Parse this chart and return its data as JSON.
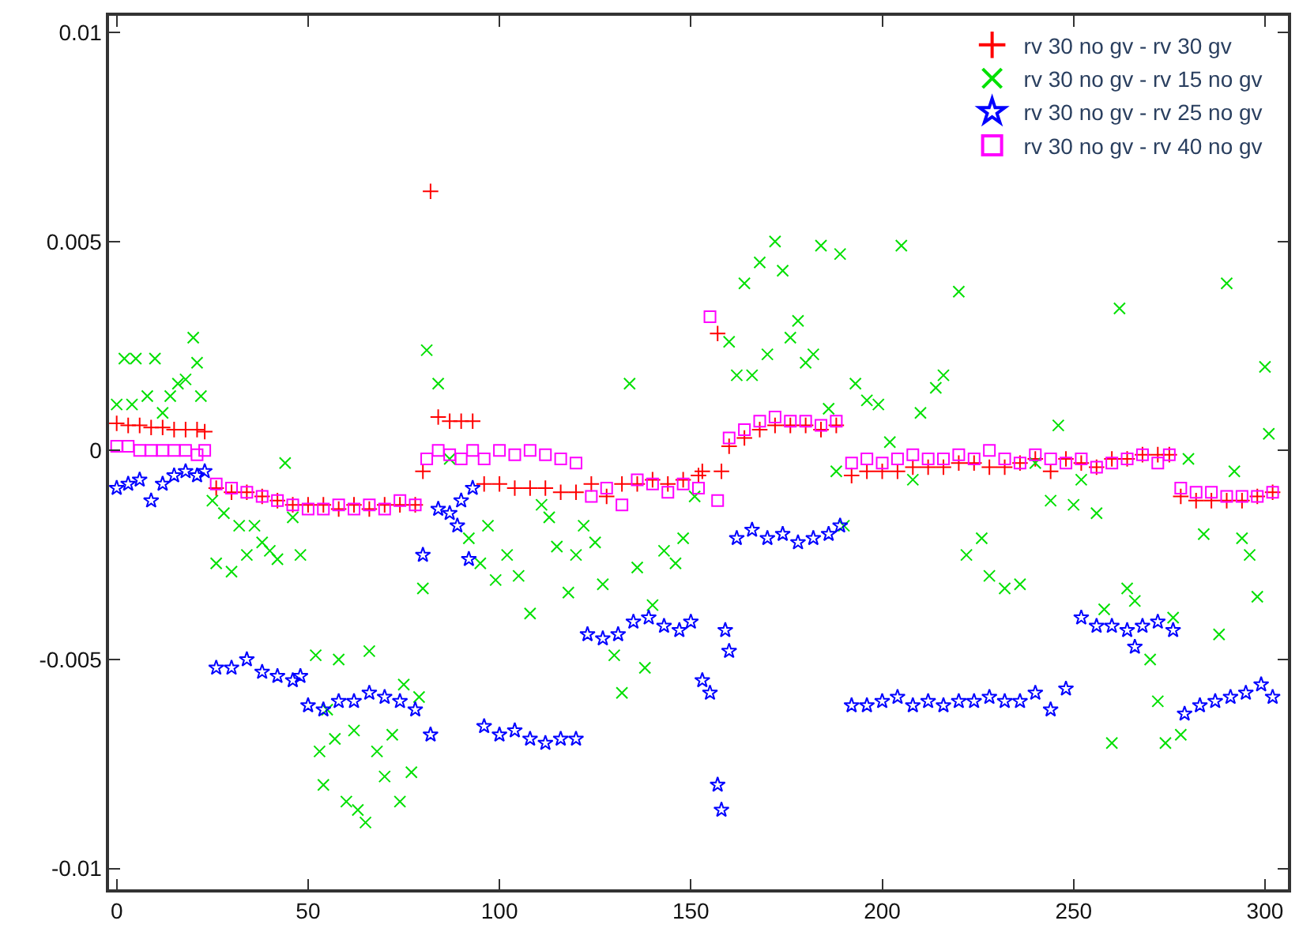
{
  "chart_data": {
    "type": "scatter",
    "xlim": [
      -2,
      306
    ],
    "ylim": [
      -0.0105,
      0.0104
    ],
    "xticks": [
      0,
      50,
      100,
      150,
      200,
      250,
      300
    ],
    "yticks": [
      -0.01,
      -0.005,
      0,
      0.005,
      0.01
    ],
    "grid": false,
    "legend": "top right",
    "series": [
      {
        "name": "rv 30 no gv - rv 30 gv",
        "color": "#ff0000",
        "marker": "cross",
        "x": [
          0,
          3,
          6,
          9,
          12,
          15,
          18,
          21,
          23,
          26,
          30,
          34,
          38,
          42,
          46,
          50,
          54,
          58,
          62,
          66,
          70,
          74,
          78,
          80,
          82,
          84,
          87,
          90,
          93,
          96,
          100,
          104,
          108,
          112,
          116,
          120,
          124,
          128,
          132,
          136,
          140,
          144,
          148,
          152,
          153,
          157,
          158,
          160,
          164,
          168,
          172,
          176,
          180,
          184,
          188,
          192,
          196,
          200,
          204,
          208,
          212,
          216,
          220,
          224,
          228,
          232,
          236,
          240,
          244,
          248,
          252,
          256,
          260,
          264,
          268,
          272,
          275,
          278,
          282,
          286,
          290,
          294,
          298,
          302
        ],
        "values": [
          0.00065,
          0.0006,
          0.0006,
          0.00055,
          0.00055,
          0.0005,
          0.0005,
          0.0005,
          0.00045,
          -0.0009,
          -0.001,
          -0.001,
          -0.0011,
          -0.0012,
          -0.0013,
          -0.0013,
          -0.0013,
          -0.0014,
          -0.0013,
          -0.0014,
          -0.0013,
          -0.0013,
          -0.0013,
          -0.0005,
          0.0062,
          0.0008,
          0.0007,
          0.0007,
          0.0007,
          -0.0008,
          -0.0008,
          -0.0009,
          -0.0009,
          -0.0009,
          -0.001,
          -0.001,
          -0.0008,
          -0.0011,
          -0.0008,
          -0.0008,
          -0.0007,
          -0.0008,
          -0.0007,
          -0.0006,
          -0.0005,
          0.0028,
          -0.0005,
          0.0001,
          0.0003,
          0.0005,
          0.0006,
          0.0006,
          0.0006,
          0.0005,
          0.0006,
          -0.0006,
          -0.0005,
          -0.0005,
          -0.0005,
          -0.0004,
          -0.0004,
          -0.0004,
          -0.0003,
          -0.0003,
          -0.0004,
          -0.0004,
          -0.0003,
          -0.0002,
          -0.0005,
          -0.0002,
          -0.0003,
          -0.0004,
          -0.0002,
          -0.0002,
          -0.0001,
          -0.0001,
          -0.0001,
          -0.0011,
          -0.0012,
          -0.0012,
          -0.0012,
          -0.0012,
          -0.0011,
          -0.001
        ]
      },
      {
        "name": "rv 30 no gv - rv 15 no gv",
        "color": "#00e000",
        "marker": "x",
        "x": [
          0,
          2,
          4,
          5,
          8,
          10,
          12,
          14,
          16,
          18,
          20,
          21,
          22,
          25,
          26,
          28,
          30,
          32,
          34,
          36,
          38,
          40,
          42,
          44,
          46,
          48,
          52,
          53,
          54,
          55,
          57,
          58,
          60,
          62,
          63,
          65,
          66,
          68,
          70,
          72,
          74,
          75,
          77,
          79,
          80,
          81,
          84,
          87,
          92,
          95,
          97,
          99,
          102,
          105,
          108,
          111,
          113,
          115,
          118,
          120,
          122,
          125,
          127,
          130,
          132,
          134,
          136,
          138,
          140,
          143,
          146,
          148,
          151,
          160,
          162,
          164,
          166,
          168,
          170,
          172,
          174,
          176,
          178,
          180,
          182,
          184,
          186,
          188,
          189,
          190,
          193,
          196,
          199,
          202,
          205,
          208,
          210,
          214,
          216,
          220,
          222,
          226,
          228,
          232,
          236,
          240,
          244,
          246,
          250,
          252,
          256,
          258,
          260,
          262,
          264,
          266,
          270,
          272,
          274,
          276,
          278,
          280,
          284,
          288,
          290,
          292,
          294,
          296,
          298,
          300,
          301
        ],
        "values": [
          0.0011,
          0.0022,
          0.0011,
          0.0022,
          0.0013,
          0.0022,
          0.0009,
          0.0013,
          0.0016,
          0.0017,
          0.0027,
          0.0021,
          0.0013,
          -0.0012,
          -0.0027,
          -0.0015,
          -0.0029,
          -0.0018,
          -0.0025,
          -0.0018,
          -0.0022,
          -0.0024,
          -0.0026,
          -0.0003,
          -0.0016,
          -0.0025,
          -0.0049,
          -0.0072,
          -0.008,
          -0.0062,
          -0.0069,
          -0.005,
          -0.0084,
          -0.0067,
          -0.0086,
          -0.0089,
          -0.0048,
          -0.0072,
          -0.0078,
          -0.0068,
          -0.0084,
          -0.0056,
          -0.0077,
          -0.0059,
          -0.0033,
          0.0024,
          0.0016,
          -0.0002,
          -0.0021,
          -0.0027,
          -0.0018,
          -0.0031,
          -0.0025,
          -0.003,
          -0.0039,
          -0.0013,
          -0.0016,
          -0.0023,
          -0.0034,
          -0.0025,
          -0.0018,
          -0.0022,
          -0.0032,
          -0.0049,
          -0.0058,
          0.0016,
          -0.0028,
          -0.0052,
          -0.0037,
          -0.0024,
          -0.0027,
          -0.0021,
          -0.0011,
          0.0026,
          0.0018,
          0.004,
          0.0018,
          0.0045,
          0.0023,
          0.005,
          0.0043,
          0.0027,
          0.0031,
          0.0021,
          0.0023,
          0.0049,
          0.001,
          -0.0005,
          0.0047,
          -0.0018,
          0.0016,
          0.0012,
          0.0011,
          0.0002,
          0.0049,
          -0.0007,
          0.0009,
          0.0015,
          0.0018,
          0.0038,
          -0.0025,
          -0.0021,
          -0.003,
          -0.0033,
          -0.0032,
          -0.0003,
          -0.0012,
          0.0006,
          -0.0013,
          -0.0007,
          -0.0015,
          -0.0038,
          -0.007,
          0.0034,
          -0.0033,
          -0.0036,
          -0.005,
          -0.006,
          -0.007,
          -0.004,
          -0.0068,
          -0.0002,
          -0.002,
          -0.0044,
          0.004,
          -0.0005,
          -0.0021,
          -0.0025,
          -0.0035,
          0.002,
          0.0004
        ]
      },
      {
        "name": "rv 30 no gv - rv 25 no gv",
        "color": "#0000ff",
        "marker": "star",
        "x": [
          0,
          3,
          6,
          9,
          12,
          15,
          18,
          21,
          23,
          26,
          30,
          34,
          38,
          42,
          46,
          48,
          50,
          54,
          58,
          62,
          66,
          70,
          74,
          78,
          80,
          82,
          84,
          87,
          89,
          90,
          92,
          93,
          96,
          100,
          104,
          108,
          112,
          116,
          120,
          123,
          127,
          131,
          135,
          139,
          143,
          147,
          150,
          153,
          155,
          157,
          158,
          159,
          160,
          162,
          166,
          170,
          174,
          178,
          182,
          186,
          189,
          192,
          196,
          200,
          204,
          208,
          212,
          216,
          220,
          224,
          228,
          232,
          236,
          240,
          244,
          248,
          252,
          256,
          260,
          264,
          266,
          268,
          272,
          276,
          279,
          283,
          287,
          291,
          295,
          299,
          302
        ],
        "values": [
          -0.0009,
          -0.0008,
          -0.0007,
          -0.0012,
          -0.0008,
          -0.0006,
          -0.0005,
          -0.0006,
          -0.0005,
          -0.0052,
          -0.0052,
          -0.005,
          -0.0053,
          -0.0054,
          -0.0055,
          -0.0054,
          -0.0061,
          -0.0062,
          -0.006,
          -0.006,
          -0.0058,
          -0.0059,
          -0.006,
          -0.0062,
          -0.0025,
          -0.0068,
          -0.0014,
          -0.0015,
          -0.0018,
          -0.0012,
          -0.0026,
          -0.0009,
          -0.0066,
          -0.0068,
          -0.0067,
          -0.0069,
          -0.007,
          -0.0069,
          -0.0069,
          -0.0044,
          -0.0045,
          -0.0044,
          -0.0041,
          -0.004,
          -0.0042,
          -0.0043,
          -0.0041,
          -0.0055,
          -0.0058,
          -0.008,
          -0.0086,
          -0.0043,
          -0.0048,
          -0.0021,
          -0.0019,
          -0.0021,
          -0.002,
          -0.0022,
          -0.0021,
          -0.002,
          -0.0018,
          -0.0061,
          -0.0061,
          -0.006,
          -0.0059,
          -0.0061,
          -0.006,
          -0.0061,
          -0.006,
          -0.006,
          -0.0059,
          -0.006,
          -0.006,
          -0.0058,
          -0.0062,
          -0.0057,
          -0.004,
          -0.0042,
          -0.0042,
          -0.0043,
          -0.0047,
          -0.0042,
          -0.0041,
          -0.0043,
          -0.0063,
          -0.0061,
          -0.006,
          -0.0059,
          -0.0058,
          -0.0056,
          -0.0059
        ]
      },
      {
        "name": "rv 30 no gv - rv 40 no gv",
        "color": "#ff00ff",
        "marker": "square",
        "x": [
          0,
          3,
          6,
          9,
          12,
          15,
          18,
          21,
          23,
          26,
          30,
          34,
          38,
          42,
          46,
          50,
          54,
          58,
          62,
          66,
          70,
          74,
          78,
          81,
          84,
          87,
          90,
          93,
          96,
          100,
          104,
          108,
          112,
          116,
          120,
          124,
          128,
          132,
          136,
          140,
          144,
          148,
          152,
          155,
          157,
          160,
          164,
          168,
          172,
          176,
          180,
          184,
          188,
          192,
          196,
          200,
          204,
          208,
          212,
          216,
          220,
          224,
          228,
          232,
          236,
          240,
          244,
          248,
          252,
          256,
          260,
          264,
          268,
          272,
          275,
          278,
          282,
          286,
          290,
          294,
          298,
          302
        ],
        "values": [
          0.0001,
          0.0001,
          0,
          0,
          0,
          0,
          0,
          -0.0001,
          0,
          -0.0008,
          -0.0009,
          -0.001,
          -0.0011,
          -0.0012,
          -0.0013,
          -0.0014,
          -0.0014,
          -0.0013,
          -0.0014,
          -0.0013,
          -0.0014,
          -0.0012,
          -0.0013,
          -0.0002,
          0,
          -0.0001,
          -0.0002,
          0,
          -0.0002,
          0,
          -0.0001,
          0,
          -0.0001,
          -0.0002,
          -0.0003,
          -0.0011,
          -0.0009,
          -0.0013,
          -0.0007,
          -0.0008,
          -0.001,
          -0.0008,
          -0.0009,
          0.0032,
          -0.0012,
          0.0003,
          0.0005,
          0.0007,
          0.0008,
          0.0007,
          0.0007,
          0.0006,
          0.0007,
          -0.0003,
          -0.0002,
          -0.0003,
          -0.0002,
          -0.0001,
          -0.0002,
          -0.0002,
          -0.0001,
          -0.0002,
          0,
          -0.0002,
          -0.0003,
          -0.0001,
          -0.0002,
          -0.0003,
          -0.0002,
          -0.0004,
          -0.0003,
          -0.0002,
          -0.0001,
          -0.0003,
          -0.0001,
          -0.0009,
          -0.001,
          -0.001,
          -0.0011,
          -0.0011,
          -0.0011,
          -0.001
        ]
      }
    ]
  }
}
